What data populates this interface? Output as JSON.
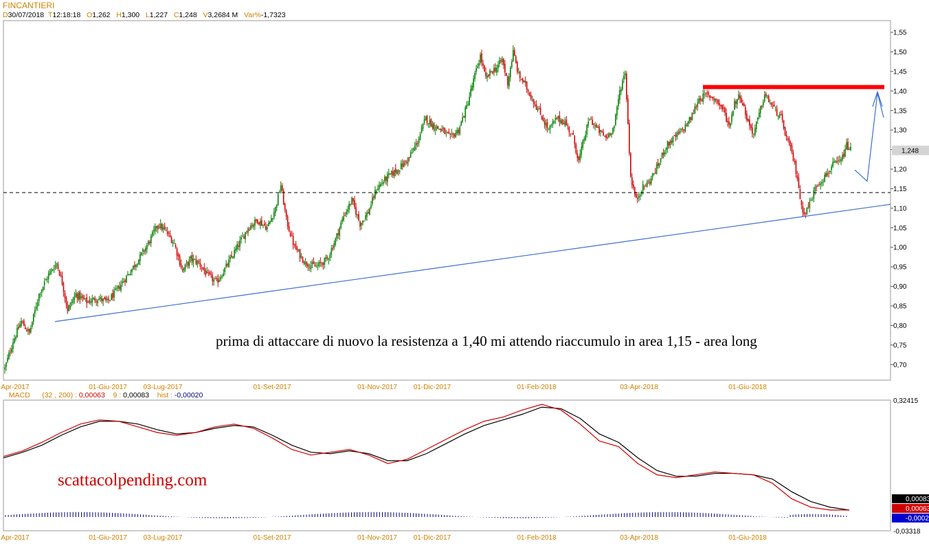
{
  "header": {
    "symbol": "FINCANTIERI",
    "d_label": "D",
    "date": "30/07/2018",
    "t_label": "T",
    "time": "12:18:18",
    "o_label": "O",
    "open": "1,262",
    "h_label": "H",
    "high": "1,300",
    "l_label": "L",
    "low": "1,227",
    "c_label": "C",
    "close": "1,248",
    "v_label": "V",
    "volume": "3,2684 M",
    "var_label": "Var%",
    "var": "-1,7323"
  },
  "macd_header": {
    "name": "MACD",
    "params": "(32 , 200) :",
    "macd_value": "0,00063",
    "signal_period": "9 :",
    "signal_value": "0,00083",
    "hist_label": "hist :",
    "hist_value": "-0,00020"
  },
  "annotation": "prima di attaccare di nuovo la resistenza a 1,40 mi attendo riaccumulo in area 1,15 - area long",
  "watermark": "scattacolpending.com",
  "colors": {
    "candle_up": "#008000",
    "candle_down": "#d00000",
    "macd_line": "#d00000",
    "signal_line": "#000000",
    "histogram": "#000080",
    "trendline": "#3a6fd0",
    "resistance": "#ff0000",
    "support_dashed": "#000000",
    "date_labels": "#d08000"
  },
  "chart_data": [
    {
      "type": "candlestick",
      "title": "FINCANTIERI",
      "y_ticks": [
        "1,55",
        "1,50",
        "1,45",
        "1,40",
        "1,35",
        "1,30",
        "1,25",
        "1,20",
        "1,15",
        "1,10",
        "1,05",
        "1,00",
        "0,95",
        "0,90",
        "0,85",
        "0,80",
        "0,75",
        "0,70"
      ],
      "ylim": [
        0.66,
        1.58
      ],
      "last_price_label": "1,248",
      "last_price": 1.248,
      "x_labels": [
        "Apr-2017",
        "01-Giu-2017",
        "03-Lug-2017",
        "01-Set-2017",
        "01-Nov-2017",
        "01-Dic-2017",
        "01-Feb-2018",
        "03-Apr-2018",
        "01-Giu-2018"
      ],
      "trend_points": [
        [
          0,
          0.69
        ],
        [
          6,
          0.76
        ],
        [
          12,
          0.81
        ],
        [
          18,
          0.78
        ],
        [
          25,
          0.88
        ],
        [
          32,
          0.93
        ],
        [
          38,
          0.96
        ],
        [
          42,
          0.91
        ],
        [
          46,
          0.84
        ],
        [
          52,
          0.88
        ],
        [
          60,
          0.86
        ],
        [
          68,
          0.87
        ],
        [
          75,
          0.86
        ],
        [
          82,
          0.89
        ],
        [
          90,
          0.93
        ],
        [
          98,
          0.97
        ],
        [
          105,
          1.01
        ],
        [
          112,
          1.06
        ],
        [
          118,
          1.04
        ],
        [
          124,
          1.01
        ],
        [
          130,
          0.94
        ],
        [
          136,
          0.97
        ],
        [
          142,
          0.96
        ],
        [
          148,
          0.93
        ],
        [
          155,
          0.91
        ],
        [
          162,
          0.95
        ],
        [
          170,
          1.0
        ],
        [
          178,
          1.05
        ],
        [
          185,
          1.07
        ],
        [
          192,
          1.05
        ],
        [
          198,
          1.1
        ],
        [
          202,
          1.16
        ],
        [
          206,
          1.07
        ],
        [
          212,
          1.0
        ],
        [
          220,
          0.96
        ],
        [
          228,
          0.95
        ],
        [
          236,
          0.97
        ],
        [
          242,
          1.02
        ],
        [
          248,
          1.08
        ],
        [
          254,
          1.12
        ],
        [
          260,
          1.06
        ],
        [
          266,
          1.09
        ],
        [
          272,
          1.15
        ],
        [
          280,
          1.18
        ],
        [
          288,
          1.2
        ],
        [
          296,
          1.23
        ],
        [
          302,
          1.27
        ],
        [
          308,
          1.33
        ],
        [
          314,
          1.31
        ],
        [
          320,
          1.3
        ],
        [
          326,
          1.28
        ],
        [
          332,
          1.3
        ],
        [
          338,
          1.36
        ],
        [
          344,
          1.44
        ],
        [
          348,
          1.49
        ],
        [
          352,
          1.43
        ],
        [
          356,
          1.45
        ],
        [
          360,
          1.46
        ],
        [
          364,
          1.48
        ],
        [
          368,
          1.42
        ],
        [
          372,
          1.5
        ],
        [
          376,
          1.44
        ],
        [
          380,
          1.42
        ],
        [
          386,
          1.38
        ],
        [
          392,
          1.34
        ],
        [
          398,
          1.3
        ],
        [
          404,
          1.33
        ],
        [
          410,
          1.32
        ],
        [
          416,
          1.28
        ],
        [
          420,
          1.22
        ],
        [
          424,
          1.28
        ],
        [
          428,
          1.33
        ],
        [
          434,
          1.3
        ],
        [
          440,
          1.28
        ],
        [
          446,
          1.31
        ],
        [
          450,
          1.4
        ],
        [
          454,
          1.45
        ],
        [
          458,
          1.18
        ],
        [
          462,
          1.12
        ],
        [
          466,
          1.15
        ],
        [
          472,
          1.17
        ],
        [
          478,
          1.21
        ],
        [
          484,
          1.26
        ],
        [
          490,
          1.28
        ],
        [
          496,
          1.3
        ],
        [
          502,
          1.33
        ],
        [
          508,
          1.38
        ],
        [
          514,
          1.39
        ],
        [
          520,
          1.38
        ],
        [
          526,
          1.35
        ],
        [
          530,
          1.31
        ],
        [
          534,
          1.37
        ],
        [
          538,
          1.39
        ],
        [
          544,
          1.32
        ],
        [
          548,
          1.29
        ],
        [
          552,
          1.34
        ],
        [
          556,
          1.39
        ],
        [
          562,
          1.36
        ],
        [
          568,
          1.33
        ],
        [
          572,
          1.28
        ],
        [
          576,
          1.24
        ],
        [
          580,
          1.18
        ],
        [
          583,
          1.1
        ],
        [
          586,
          1.09
        ],
        [
          590,
          1.12
        ],
        [
          594,
          1.16
        ],
        [
          600,
          1.18
        ],
        [
          606,
          1.21
        ],
        [
          612,
          1.22
        ],
        [
          616,
          1.26
        ],
        [
          619,
          1.25
        ]
      ],
      "series_count": 620,
      "support_level": 1.14,
      "resistance_level": 1.41,
      "trendline": [
        [
          0.81,
          0.05
        ],
        [
          1.11,
          0.961
        ]
      ],
      "arrow_path": [
        [
          1.198,
          0.94
        ],
        [
          1.169,
          0.965
        ],
        [
          1.395,
          0.986
        ],
        [
          1.332,
          0.996
        ]
      ]
    },
    {
      "type": "line",
      "title": "MACD",
      "series": [
        {
          "name": "MACD",
          "values": [
            0.05,
            0.09,
            0.15,
            0.22,
            0.28,
            0.31,
            0.3,
            0.26,
            0.22,
            0.2,
            0.22,
            0.26,
            0.28,
            0.25,
            0.18,
            0.1,
            0.06,
            0.08,
            0.1,
            0.06,
            0.0,
            0.03,
            0.1,
            0.17,
            0.24,
            0.3,
            0.33,
            0.38,
            0.42,
            0.38,
            0.28,
            0.16,
            0.12,
            0.0,
            -0.08,
            -0.1,
            -0.08,
            -0.06,
            -0.07,
            -0.08,
            -0.14,
            -0.25,
            -0.31,
            -0.33,
            -0.33
          ]
        },
        {
          "name": "Signal",
          "values": [
            0.04,
            0.08,
            0.13,
            0.2,
            0.26,
            0.3,
            0.3,
            0.28,
            0.24,
            0.21,
            0.22,
            0.25,
            0.27,
            0.26,
            0.2,
            0.13,
            0.08,
            0.07,
            0.09,
            0.07,
            0.02,
            0.02,
            0.07,
            0.14,
            0.21,
            0.27,
            0.31,
            0.35,
            0.4,
            0.39,
            0.32,
            0.21,
            0.15,
            0.04,
            -0.05,
            -0.09,
            -0.09,
            -0.07,
            -0.07,
            -0.08,
            -0.11,
            -0.2,
            -0.27,
            -0.31,
            -0.33
          ]
        }
      ],
      "y_ticks": [
        "0,32415",
        "-0,03318"
      ],
      "value_labels": [
        "0,00083",
        "0,00063",
        "-0,00020"
      ],
      "value_label_colors": [
        "#000000",
        "#d00000",
        "#0000d0"
      ]
    }
  ]
}
